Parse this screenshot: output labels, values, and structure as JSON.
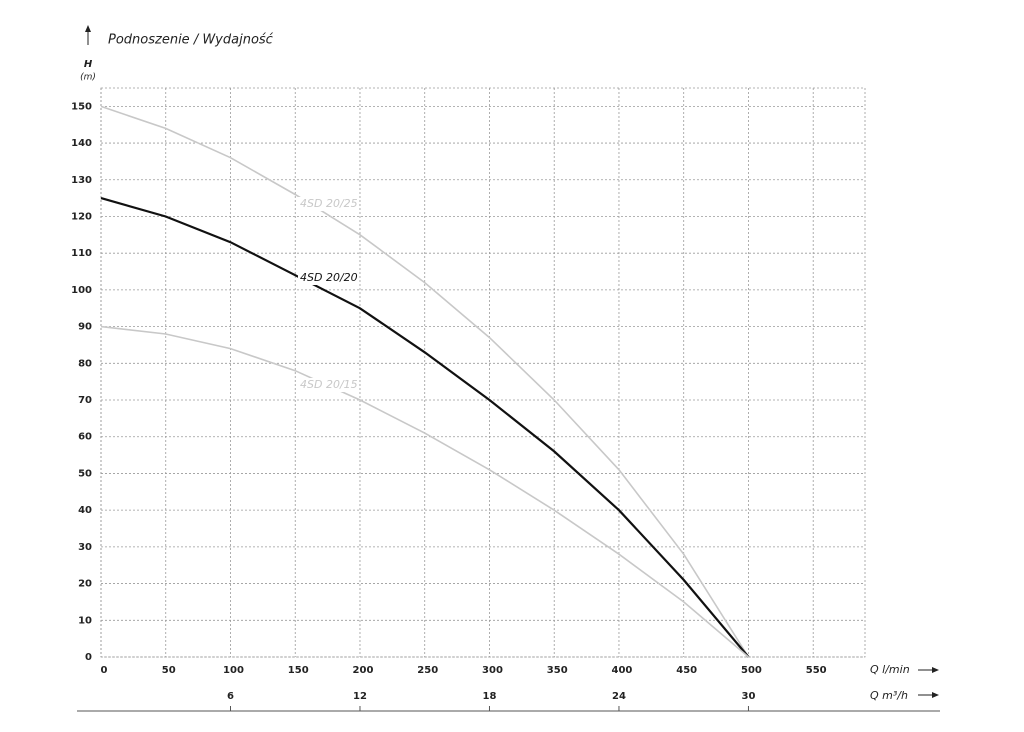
{
  "chart_data": {
    "type": "line",
    "title": "Podnoszenie / Wydajność",
    "ylabel": "H",
    "yunit": "(m)",
    "xlabel": "Q l/min",
    "x2label": "Q m³/h",
    "x": [
      0,
      50,
      100,
      150,
      200,
      250,
      300,
      350,
      400,
      450,
      500
    ],
    "series": [
      {
        "name": "4SD 20/25",
        "color": "#c8c8c8",
        "values": [
          150,
          144,
          136,
          126,
          115,
          102,
          87,
          70,
          51,
          28,
          0
        ]
      },
      {
        "name": "4SD 20/20",
        "color": "#111111",
        "values": [
          125,
          120,
          113,
          104,
          95,
          83,
          70,
          56,
          40,
          21,
          0
        ]
      },
      {
        "name": "4SD 20/15",
        "color": "#c8c8c8",
        "values": [
          90,
          88,
          84,
          78,
          70,
          61,
          51,
          40,
          28,
          15,
          0
        ]
      }
    ],
    "xlim": [
      0,
      590
    ],
    "xticks": [
      0,
      50,
      100,
      150,
      200,
      250,
      300,
      350,
      400,
      450,
      500,
      550
    ],
    "x2lim": [
      0,
      35.4
    ],
    "x2ticks": [
      6,
      12,
      18,
      24,
      30
    ],
    "ylim": [
      0,
      155
    ],
    "yticks": [
      0,
      10,
      20,
      30,
      40,
      50,
      60,
      70,
      80,
      90,
      100,
      110,
      120,
      130,
      140,
      150
    ],
    "grid": true
  }
}
